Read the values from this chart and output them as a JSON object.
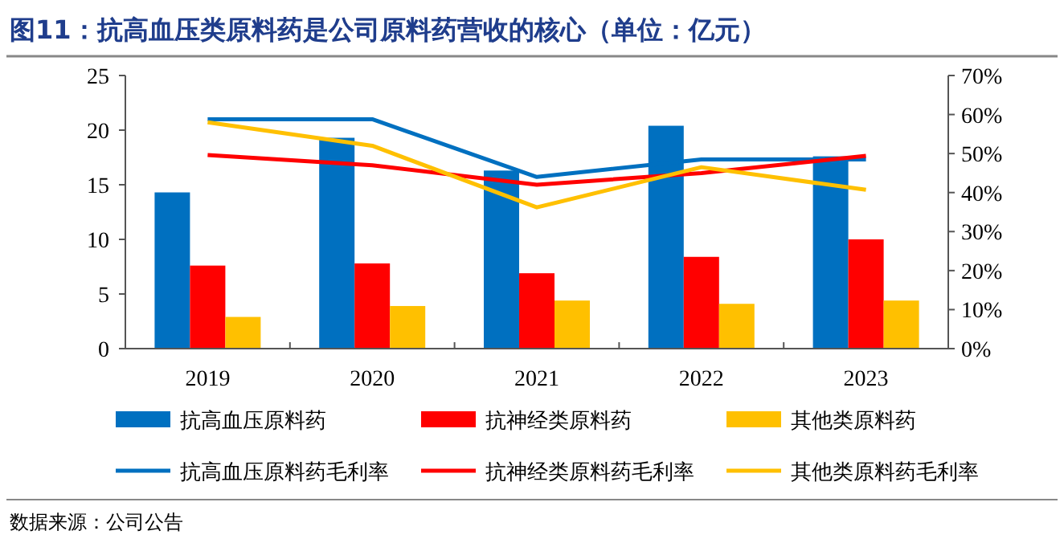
{
  "chart_data": {
    "type": "bar",
    "title": "图11：抗高血压类原料药是公司原料药营收的核心（单位：亿元）",
    "categories": [
      "2019",
      "2020",
      "2021",
      "2022",
      "2023"
    ],
    "series": [
      {
        "name": "抗高血压原料药",
        "color": "#0070c0",
        "values": [
          14.3,
          19.3,
          16.3,
          20.4,
          17.6
        ]
      },
      {
        "name": "抗神经类原料药",
        "color": "#ff0000",
        "values": [
          7.6,
          7.8,
          6.9,
          8.4,
          10.0
        ]
      },
      {
        "name": "其他类原料药",
        "color": "#ffc000",
        "values": [
          2.9,
          3.9,
          4.4,
          4.1,
          4.4
        ]
      },
      {
        "name": "抗高血压原料药毛利率",
        "type": "line",
        "axis": "y2",
        "color": "#0070c0",
        "values": [
          58.8,
          58.8,
          44,
          48.5,
          48.5
        ]
      },
      {
        "name": "抗神经类原料药毛利率",
        "type": "line",
        "axis": "y2",
        "color": "#ff0000",
        "values": [
          49.6,
          47,
          42,
          45,
          49.4
        ]
      },
      {
        "name": "其他类原料药毛利率",
        "type": "line",
        "axis": "y2",
        "color": "#ffc000",
        "values": [
          58,
          52,
          36.2,
          46.5,
          40.7
        ]
      }
    ],
    "ylim": [
      0,
      25
    ],
    "yticks": [
      0,
      5,
      10,
      15,
      20,
      25
    ],
    "y2lim": [
      0,
      70
    ],
    "y2ticks": [
      {
        "value": 0,
        "label": "0%"
      },
      {
        "value": 10,
        "label": "10%"
      },
      {
        "value": 20,
        "label": "20%"
      },
      {
        "value": 30,
        "label": "30%"
      },
      {
        "value": 40,
        "label": "40%"
      },
      {
        "value": 50,
        "label": "50%"
      },
      {
        "value": 60,
        "label": "60%"
      },
      {
        "value": 70,
        "label": "70%"
      }
    ],
    "grid": false,
    "legend": "bottom",
    "marker": "none",
    "annotations": [
      "数据来源：公司公告"
    ]
  }
}
